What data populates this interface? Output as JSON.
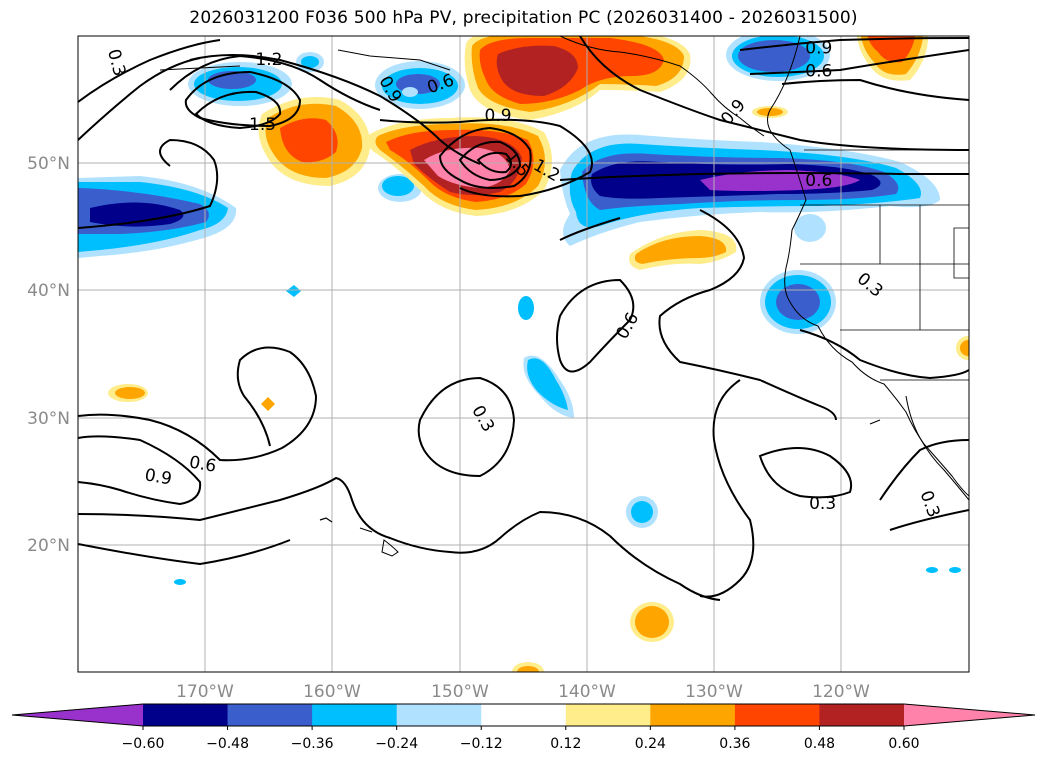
{
  "title": "2026031200 F036 500 hPa PV, precipitation PC (2026031400 - 2026031500)",
  "axes": {
    "lon_labels": [
      "170°W",
      "160°W",
      "150°W",
      "140°W",
      "130°W",
      "120°W"
    ],
    "lat_labels": [
      "50°N",
      "40°N",
      "30°N",
      "20°N"
    ],
    "lon_range": [
      -180,
      -110
    ],
    "lat_range": [
      10,
      60
    ]
  },
  "colorbar": {
    "ticks": [
      "−0.60",
      "−0.48",
      "−0.36",
      "−0.24",
      "−0.12",
      "0.12",
      "0.24",
      "0.36",
      "0.48",
      "0.60"
    ],
    "colors": [
      "#9932cc",
      "#00008b",
      "#3a5fcd",
      "#00bfff",
      "#b0e2ff",
      "#ffffff",
      "#ffec8b",
      "#ffa500",
      "#ff4500",
      "#b22222",
      "#ff82ab"
    ]
  },
  "contour_labels": [
    {
      "text": "0.3",
      "lon": -177,
      "lat": 57.9,
      "rot": 75
    },
    {
      "text": "1.2",
      "lon": -165,
      "lat": 58.1,
      "rot": 0
    },
    {
      "text": "1.5",
      "lon": -165.5,
      "lat": 53,
      "rot": 0
    },
    {
      "text": "0.9",
      "lon": -155.5,
      "lat": 55.8,
      "rot": 60
    },
    {
      "text": "0.6",
      "lon": -151.5,
      "lat": 56.2,
      "rot": -20
    },
    {
      "text": "0.9",
      "lon": -147,
      "lat": 53.7,
      "rot": 0
    },
    {
      "text": "1.5",
      "lon": -145.5,
      "lat": 49.9,
      "rot": 50
    },
    {
      "text": "1.2",
      "lon": -143.2,
      "lat": 49.4,
      "rot": 30
    },
    {
      "text": "0.9",
      "lon": -128.5,
      "lat": 54,
      "rot": -50
    },
    {
      "text": "0.9",
      "lon": -121.8,
      "lat": 59,
      "rot": 0
    },
    {
      "text": "0.6",
      "lon": -121.8,
      "lat": 57.2,
      "rot": 0
    },
    {
      "text": "0.6",
      "lon": -121.8,
      "lat": 48.6,
      "rot": 0
    },
    {
      "text": "0.3",
      "lon": -117.8,
      "lat": 40.4,
      "rot": 40
    },
    {
      "text": "0.6",
      "lon": -136.8,
      "lat": 37.2,
      "rot": -60
    },
    {
      "text": "0.3",
      "lon": -148.2,
      "lat": 29.9,
      "rot": 60
    },
    {
      "text": "0.6",
      "lon": -170.2,
      "lat": 26.3,
      "rot": 10
    },
    {
      "text": "0.9",
      "lon": -173.7,
      "lat": 25.3,
      "rot": 10
    },
    {
      "text": "0.3",
      "lon": -121.5,
      "lat": 23.2,
      "rot": 0
    },
    {
      "text": "0.3",
      "lon": -113.1,
      "lat": 23.2,
      "rot": 70
    }
  ]
}
